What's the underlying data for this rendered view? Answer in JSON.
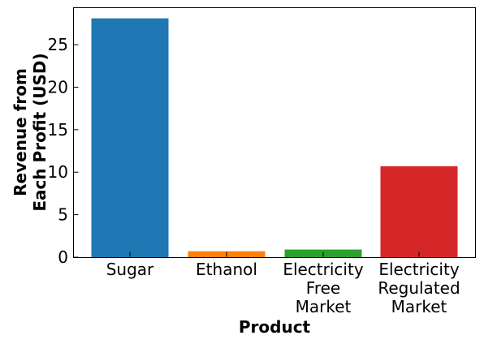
{
  "chart_data": {
    "type": "bar",
    "title": "",
    "xlabel": "Product",
    "ylabel_lines": [
      "Revenue from",
      "Each Profit (USD)"
    ],
    "categories": [
      [
        "Sugar"
      ],
      [
        "Ethanol"
      ],
      [
        "Electricity",
        "Free",
        "Market"
      ],
      [
        "Electricity",
        "Regulated",
        "Market"
      ]
    ],
    "values": [
      28.1,
      0.7,
      0.9,
      10.7
    ],
    "colors": [
      "#1f77b4",
      "#ff7f0e",
      "#2ca02c",
      "#d62728"
    ],
    "ylim": [
      0,
      29.4
    ],
    "yticks": [
      0,
      5,
      10,
      15,
      20,
      25
    ],
    "grid": false,
    "legend": "none"
  }
}
